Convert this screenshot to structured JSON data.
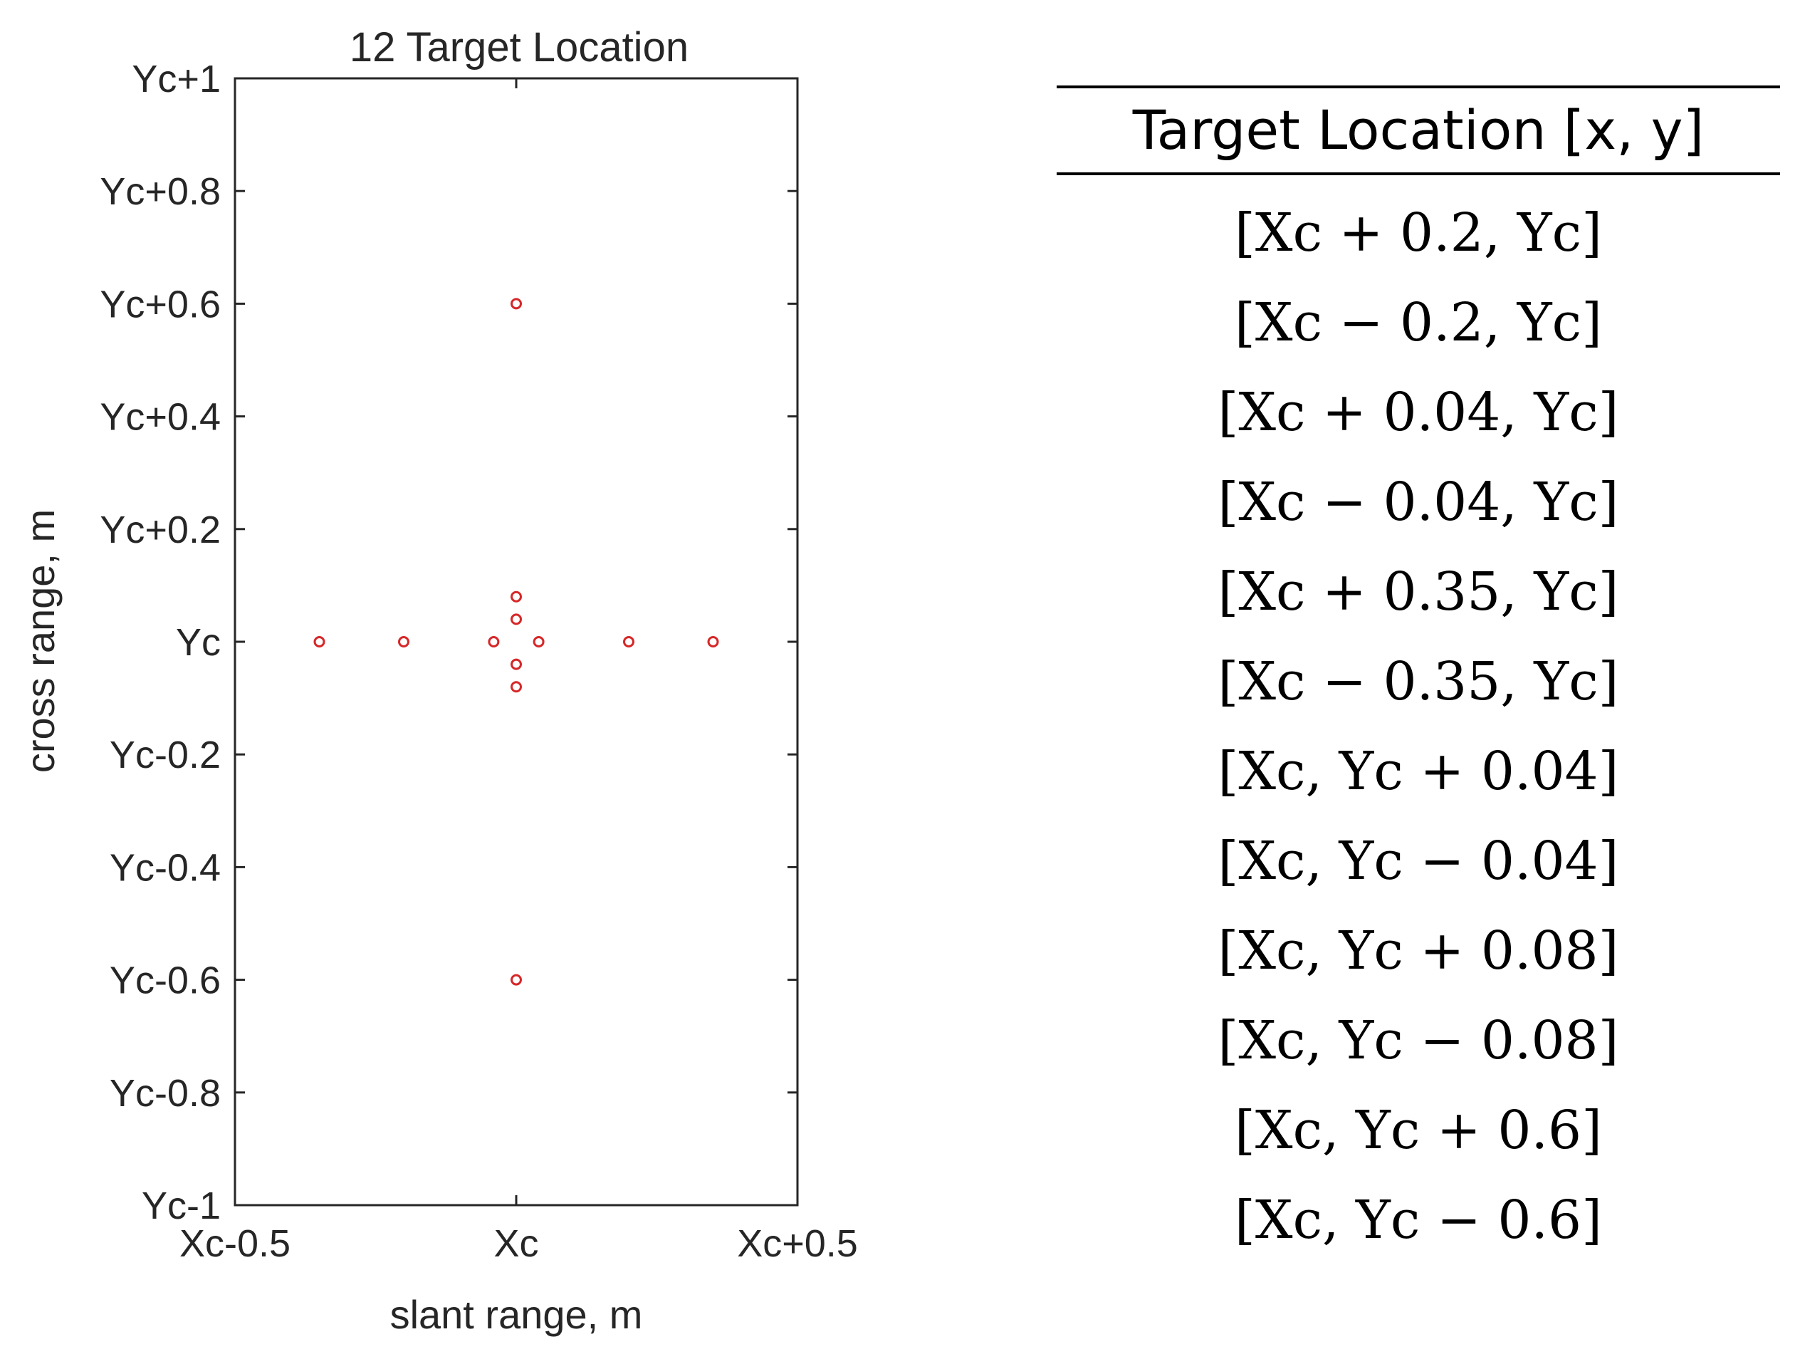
{
  "chart_data": {
    "type": "scatter",
    "title": "12 Target Location",
    "xlabel": "slant range, m",
    "ylabel": "cross range, m",
    "xlim": [
      -0.5,
      0.5
    ],
    "ylim": [
      -1,
      1
    ],
    "x_ticks": [
      {
        "value": -0.5,
        "label": "Xc-0.5"
      },
      {
        "value": 0,
        "label": "Xc"
      },
      {
        "value": 0.5,
        "label": "Xc+0.5"
      }
    ],
    "y_ticks": [
      {
        "value": 1,
        "label": "Yc+1"
      },
      {
        "value": 0.8,
        "label": "Yc+0.8"
      },
      {
        "value": 0.6,
        "label": "Yc+0.6"
      },
      {
        "value": 0.4,
        "label": "Yc+0.4"
      },
      {
        "value": 0.2,
        "label": "Yc+0.2"
      },
      {
        "value": 0,
        "label": "Yc"
      },
      {
        "value": -0.2,
        "label": "Yc-0.2"
      },
      {
        "value": -0.4,
        "label": "Yc-0.4"
      },
      {
        "value": -0.6,
        "label": "Yc-0.6"
      },
      {
        "value": -0.8,
        "label": "Yc-0.8"
      },
      {
        "value": -1,
        "label": "Yc-1"
      }
    ],
    "grid": false,
    "marker_color": "#d62728",
    "points": [
      {
        "x": 0.2,
        "y": 0
      },
      {
        "x": -0.2,
        "y": 0
      },
      {
        "x": 0.04,
        "y": 0
      },
      {
        "x": -0.04,
        "y": 0
      },
      {
        "x": 0.35,
        "y": 0
      },
      {
        "x": -0.35,
        "y": 0
      },
      {
        "x": 0,
        "y": 0.04
      },
      {
        "x": 0,
        "y": -0.04
      },
      {
        "x": 0,
        "y": 0.08
      },
      {
        "x": 0,
        "y": -0.08
      },
      {
        "x": 0,
        "y": 0.6
      },
      {
        "x": 0,
        "y": -0.6
      }
    ]
  },
  "table": {
    "header": "Target Location [x, y]",
    "rows": [
      "[Xc + 0.2, Yc]",
      "[Xc − 0.2, Yc]",
      "[Xc + 0.04, Yc]",
      "[Xc − 0.04, Yc]",
      "[Xc + 0.35, Yc]",
      "[Xc − 0.35, Yc]",
      "[Xc, Yc + 0.04]",
      "[Xc, Yc − 0.04]",
      "[Xc, Yc + 0.08]",
      "[Xc, Yc − 0.08]",
      "[Xc, Yc + 0.6]",
      "[Xc, Yc − 0.6]"
    ]
  }
}
